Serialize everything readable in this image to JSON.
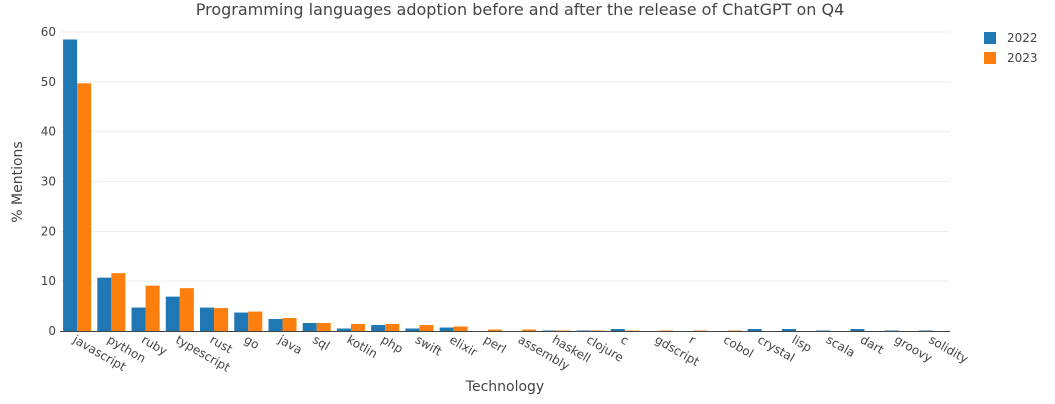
{
  "chart_data": {
    "type": "bar",
    "title": "Programming languages adoption before and after the release of ChatGPT on Q4",
    "xlabel": "Technology",
    "ylabel": "% Mentions",
    "ylim": [
      0,
      60
    ],
    "yticks": [
      "0",
      "10",
      "20",
      "30",
      "40",
      "50",
      "60"
    ],
    "grid": true,
    "legend_position": "top-right",
    "categories": [
      "javascript",
      "python",
      "ruby",
      "typescript",
      "rust",
      "go",
      "java",
      "sql",
      "kotlin",
      "php",
      "swift",
      "elixir",
      "perl",
      "assembly",
      "haskell",
      "clojure",
      "c",
      "gdscript",
      "r",
      "cobol",
      "crystal",
      "lisp",
      "scala",
      "dart",
      "groovy",
      "solidity"
    ],
    "series": [
      {
        "name": "2022",
        "color": "#1f77b4",
        "values": [
          58.5,
          10.7,
          4.7,
          6.9,
          4.7,
          3.7,
          2.4,
          1.6,
          0.5,
          1.2,
          0.5,
          0.7,
          0.0,
          0.0,
          0.1,
          0.1,
          0.4,
          0.0,
          0.0,
          0.0,
          0.4,
          0.4,
          0.1,
          0.4,
          0.1,
          0.1
        ]
      },
      {
        "name": "2023",
        "color": "#ff7f0e",
        "values": [
          49.7,
          11.6,
          9.1,
          8.6,
          4.6,
          3.9,
          2.6,
          1.6,
          1.4,
          1.4,
          1.2,
          0.9,
          0.3,
          0.3,
          0.1,
          0.1,
          0.1,
          0.1,
          0.1,
          0.1,
          0.0,
          0.0,
          0.0,
          0.0,
          0.0,
          0.0
        ]
      }
    ]
  }
}
